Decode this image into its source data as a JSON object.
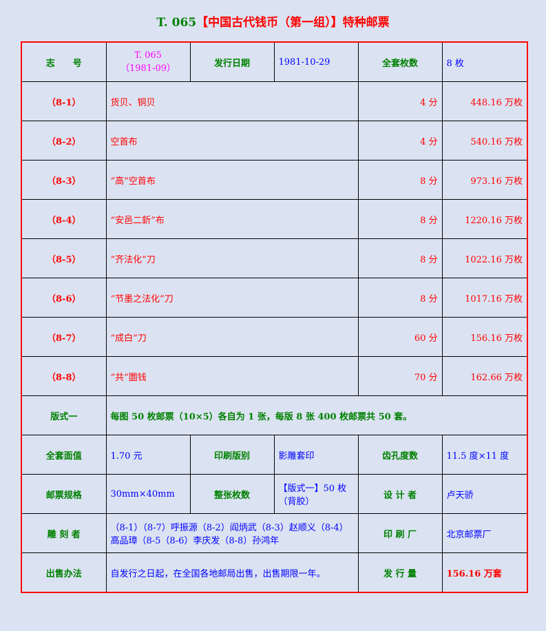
{
  "title": {
    "code": "T. 065",
    "name": "【中国古代钱币（第一组）】特种邮票"
  },
  "header": {
    "label_zhihao": "志　　号",
    "zhihao_line1": "T. 065",
    "zhihao_line2": "（1981-09）",
    "label_date": "发行日期",
    "date": "1981-10-29",
    "label_count": "全套枚数",
    "count": "8 枚"
  },
  "stamps": [
    {
      "code": "（8-1）",
      "name": "货贝、铜贝",
      "value": "4 分",
      "quantity": "448.16 万枚"
    },
    {
      "code": "（8-2）",
      "name": "空首布",
      "value": "4 分",
      "quantity": "540.16 万枚"
    },
    {
      "code": "（8-3）",
      "name": "“高”空首布",
      "value": "8 分",
      "quantity": "973.16 万枚"
    },
    {
      "code": "（8-4）",
      "name": "“安邑二釿”布",
      "value": "8 分",
      "quantity": "1220.16 万枚"
    },
    {
      "code": "（8-5）",
      "name": "“齐法化”刀",
      "value": "8 分",
      "quantity": "1022.16 万枚"
    },
    {
      "code": "（8-6）",
      "name": "“节墨之法化”刀",
      "value": "8 分",
      "quantity": "1017.16 万枚"
    },
    {
      "code": "（8-7）",
      "name": "“成白”刀",
      "value": "60 分",
      "quantity": "156.16 万枚"
    },
    {
      "code": "（8-8）",
      "name": "“共”圜钱",
      "value": "70 分",
      "quantity": "162.66 万枚"
    }
  ],
  "format": {
    "label": "版式一",
    "text": "每图 50 枚邮票（10×5）各自为 1 张，每版 8 张 400 枚邮票共 50 套。"
  },
  "details": {
    "label_facevalue": "全套面值",
    "facevalue": "1.70 元",
    "label_print": "印刷版别",
    "print": "影雕套印",
    "label_perf": "齿孔度数",
    "perf": "11.5 度×11 度",
    "label_size": "邮票规格",
    "size": "30mm×40mm",
    "label_sheet": "整张枚数",
    "sheet": "【版式一】50 枚（背胶）",
    "label_designer": "设 计 者",
    "designer": "卢天骄",
    "label_engraver": "雕 刻 者",
    "engraver": "（8-1）（8-7）呼振源（8-2）阎炳武（8-3）赵顺义（8-4）高品璋（8-5（8-6）李庆发（8-8）孙鸿年",
    "label_printer": "印 刷 厂",
    "printer": "北京邮票厂",
    "label_sale": "出售办法",
    "sale": "自发行之日起，在全国各地邮局出售，出售期限一年。",
    "label_issue": "发 行 量",
    "issue": "156.16 万套"
  }
}
